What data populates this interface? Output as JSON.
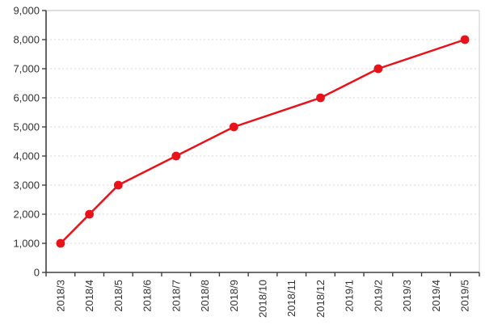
{
  "chart_data": {
    "type": "line",
    "categories": [
      "2018/3",
      "2018/4",
      "2018/5",
      "2018/6",
      "2018/7",
      "2018/8",
      "2018/9",
      "2018/10",
      "2018/11",
      "2018/12",
      "2019/1",
      "2019/2",
      "2019/3",
      "2019/4",
      "2019/5"
    ],
    "series": [
      {
        "name": "value",
        "color": "#e8131a",
        "values": [
          1000,
          2000,
          3000,
          null,
          4000,
          null,
          5000,
          null,
          null,
          6000,
          null,
          7000,
          null,
          null,
          8000
        ]
      }
    ],
    "title": "",
    "xlabel": "",
    "ylabel": "",
    "ylim": [
      0,
      9000
    ],
    "ytick_step": 1000,
    "ytick_labels": [
      "0",
      "1,000",
      "2,000",
      "3,000",
      "4,000",
      "5,000",
      "6,000",
      "7,000",
      "8,000",
      "9,000"
    ],
    "grid": "dotted-horizontal",
    "legend": "none",
    "marker": "filled-circle",
    "colors": {
      "line": "#e8131a",
      "marker": "#e8131a",
      "axis": "#404040",
      "grid": "#d9d9d9",
      "plot_border_top": "#c9c9c9",
      "plot_border_right": "#d6d6d6",
      "tick_text": "#333333",
      "background": "#ffffff"
    }
  }
}
